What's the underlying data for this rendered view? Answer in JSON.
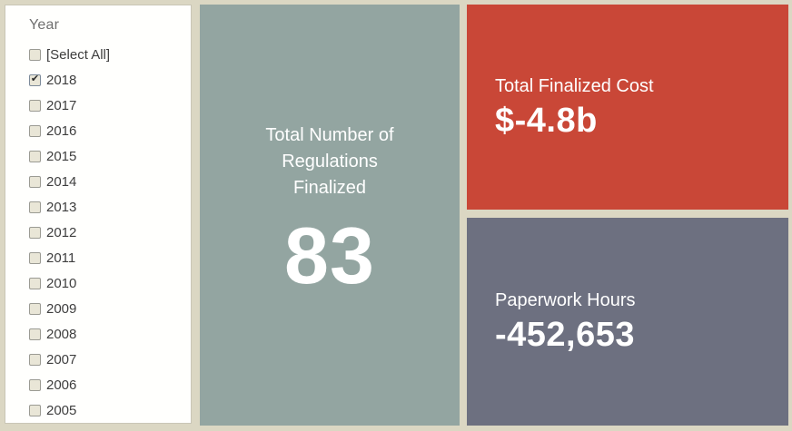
{
  "colors": {
    "background": "#dbd7c3",
    "sidebar_bg": "#fffffd",
    "teal_panel": "#93a5a1",
    "red_panel": "#c94737",
    "slate_panel": "#6d7080",
    "panel_text": "#ffffff",
    "item_text": "#3e3e3e",
    "title_text": "#6f6f6f"
  },
  "sidebar": {
    "title": "Year",
    "items": [
      {
        "label": "[Select All]",
        "checked": false
      },
      {
        "label": "2018",
        "checked": true
      },
      {
        "label": "2017",
        "checked": false
      },
      {
        "label": "2016",
        "checked": false
      },
      {
        "label": "2015",
        "checked": false
      },
      {
        "label": "2014",
        "checked": false
      },
      {
        "label": "2013",
        "checked": false
      },
      {
        "label": "2012",
        "checked": false
      },
      {
        "label": "2011",
        "checked": false
      },
      {
        "label": "2010",
        "checked": false
      },
      {
        "label": "2009",
        "checked": false
      },
      {
        "label": "2008",
        "checked": false
      },
      {
        "label": "2007",
        "checked": false
      },
      {
        "label": "2006",
        "checked": false
      },
      {
        "label": "2005",
        "checked": false
      }
    ]
  },
  "kpis": {
    "regulations": {
      "label": "Total Number of Regulations Finalized",
      "value": "83"
    },
    "cost": {
      "label": "Total Finalized Cost",
      "value": "$-4.8b"
    },
    "paperwork": {
      "label": "Paperwork Hours",
      "value": "-452,653"
    }
  }
}
